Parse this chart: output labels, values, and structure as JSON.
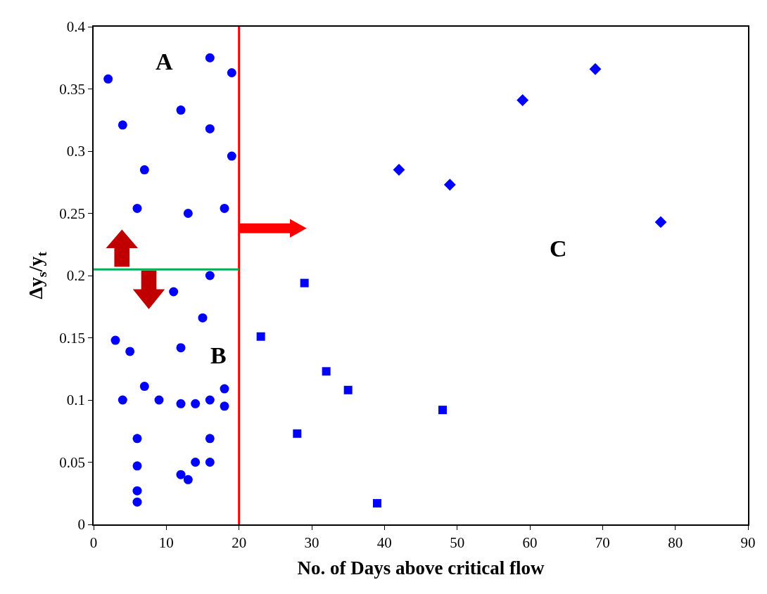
{
  "chart_data": {
    "type": "scatter",
    "xlabel": "No. of Days above critical flow",
    "ylabel": "Δy$_{s}$/y$_{t}$",
    "xlim": [
      0,
      90
    ],
    "xticks": [
      0,
      10,
      20,
      30,
      40,
      50,
      60,
      70,
      80,
      90
    ],
    "ylim": [
      0,
      0.4
    ],
    "yticks": [
      0,
      0.05,
      0.1,
      0.15,
      0.2,
      0.25,
      0.3,
      0.35,
      0.4
    ],
    "series": [
      {
        "color": "#0000ff",
        "marker": "circle",
        "x": [
          2,
          16,
          19,
          12,
          4,
          16,
          19,
          7,
          6,
          13,
          18,
          16,
          11,
          15,
          3,
          12,
          5,
          7,
          18,
          4,
          9,
          12,
          14,
          16,
          18,
          6,
          16,
          6,
          14,
          16,
          12,
          13,
          6,
          6
        ],
        "values": [
          0.358,
          0.375,
          0.363,
          0.333,
          0.321,
          0.318,
          0.296,
          0.285,
          0.254,
          0.25,
          0.254,
          0.2,
          0.187,
          0.166,
          0.148,
          0.142,
          0.139,
          0.111,
          0.109,
          0.1,
          0.1,
          0.097,
          0.097,
          0.1,
          0.095,
          0.069,
          0.069,
          0.047,
          0.05,
          0.05,
          0.04,
          0.036,
          0.027,
          0.018
        ]
      },
      {
        "color": "#0000ff",
        "marker": "square",
        "x": [
          29,
          23,
          32,
          35,
          48,
          28,
          39
        ],
        "values": [
          0.194,
          0.151,
          0.123,
          0.108,
          0.092,
          0.073,
          0.017
        ]
      },
      {
        "color": "#0000ff",
        "marker": "diamond",
        "x": [
          42,
          49,
          59,
          69,
          78
        ],
        "values": [
          0.285,
          0.273,
          0.341,
          0.366,
          0.243
        ]
      }
    ],
    "ref_lines": [
      {
        "axis": "x",
        "value": 20,
        "color": "#ff0000"
      },
      {
        "axis": "y",
        "value": 0.205,
        "color": "#00b050"
      }
    ],
    "annotations": [
      "A",
      "B",
      "C"
    ]
  }
}
